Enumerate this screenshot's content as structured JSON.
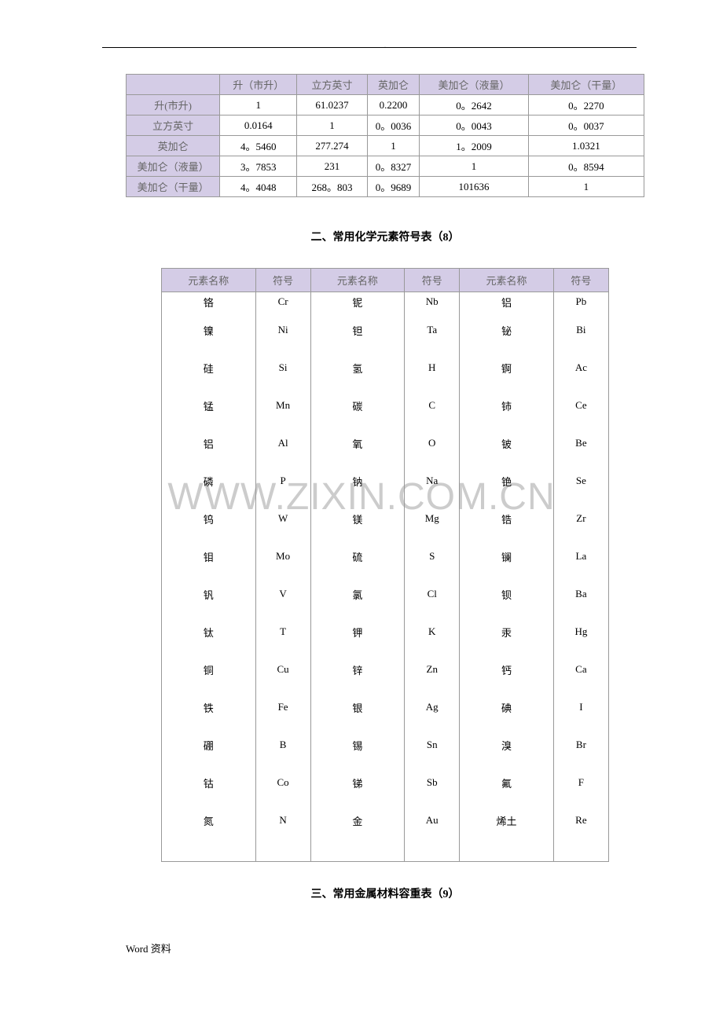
{
  "header_mark": ".",
  "watermark": "WWW.ZIXIN.COM.CN",
  "conversion_table": {
    "columns": [
      "",
      "升（市升）",
      "立方英寸",
      "英加仑",
      "美加仑（液量）",
      "美加仑（干量）"
    ],
    "rows": [
      [
        "升(市升)",
        "1",
        "61.0237",
        "0.2200",
        "0。2642",
        "0。2270"
      ],
      [
        "立方英寸",
        "0.0164",
        "1",
        "0。0036",
        "0。0043",
        "0。0037"
      ],
      [
        "英加仑",
        "4。5460",
        "277.274",
        "1",
        "1。2009",
        "1.0321"
      ],
      [
        "美加仑（液量）",
        "3。7853",
        "231",
        "0。8327",
        "1",
        "0。8594"
      ],
      [
        "美加仑（干量）",
        "4。4048",
        "268。803",
        "0。9689",
        "101636",
        "1"
      ]
    ],
    "col_widths": [
      "120px",
      "95px",
      "85px",
      "60px",
      "140px",
      "150px"
    ]
  },
  "section2_title": "二、常用化学元素符号表（8）",
  "element_table": {
    "headers": [
      "元素名称",
      "符号",
      "元素名称",
      "符号",
      "元素名称",
      "符号"
    ],
    "rows": [
      [
        "铬",
        "Cr",
        "铌",
        "Nb",
        "铝",
        "Pb"
      ],
      [
        "镍",
        "Ni",
        "钽",
        "Ta",
        "铋",
        "Bi"
      ],
      [
        "硅",
        "Si",
        "氢",
        "H",
        "锕",
        "Ac"
      ],
      [
        "锰",
        "Mn",
        "碳",
        "C",
        "铈",
        "Ce"
      ],
      [
        "铝",
        "Al",
        "氧",
        "O",
        "铍",
        "Be"
      ],
      [
        "磷",
        "P",
        "钠",
        "Na",
        "铯",
        "Se"
      ],
      [
        "钨",
        "W",
        "镁",
        "Mg",
        "锆",
        "Zr"
      ],
      [
        "钼",
        "Mo",
        "硫",
        "S",
        "镧",
        "La"
      ],
      [
        "钒",
        "V",
        "氯",
        "Cl",
        "钡",
        "Ba"
      ],
      [
        "钛",
        "T",
        "钾",
        "K",
        "汞",
        "Hg"
      ],
      [
        "铜",
        "Cu",
        "锌",
        "Zn",
        "钙",
        "Ca"
      ],
      [
        "铁",
        "Fe",
        "银",
        "Ag",
        "碘",
        "I"
      ],
      [
        "硼",
        "B",
        "锡",
        "Sn",
        "溴",
        "Br"
      ],
      [
        "钴",
        "Co",
        "锑",
        "Sb",
        "氟",
        "F"
      ],
      [
        "氮",
        "N",
        "金",
        "Au",
        "烯土",
        "Re"
      ],
      [
        "",
        "",
        "",
        "",
        "",
        ""
      ]
    ]
  },
  "section3_title": "三、常用金属材料容重表（9）",
  "footer": "Word 资料"
}
